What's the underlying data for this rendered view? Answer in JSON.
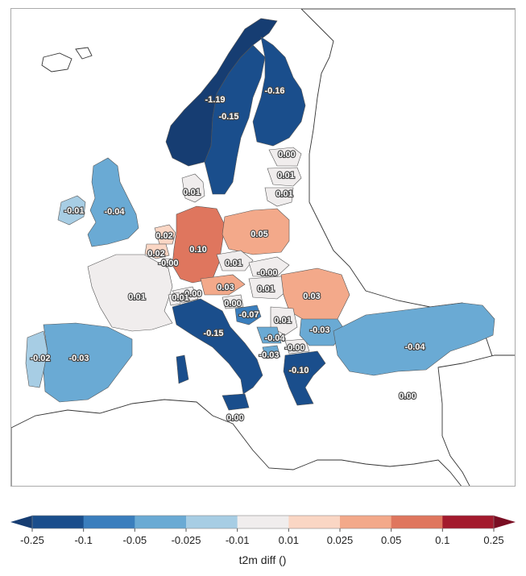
{
  "map": {
    "countries": [
      {
        "id": "norway",
        "label": "-1.19",
        "value": -1.19
      },
      {
        "id": "sweden",
        "label": "-0.15",
        "value": -0.15
      },
      {
        "id": "finland",
        "label": "-0.16",
        "value": -0.16
      },
      {
        "id": "estonia",
        "label": "0.00",
        "value": 0.0
      },
      {
        "id": "latvia",
        "label": "0.01",
        "value": 0.01
      },
      {
        "id": "lithuania",
        "label": "0.01",
        "value": 0.01
      },
      {
        "id": "denmark",
        "label": "0.01",
        "value": 0.01
      },
      {
        "id": "ireland",
        "label": "-0.01",
        "value": -0.01
      },
      {
        "id": "united-kingdom",
        "label": "-0.04",
        "value": -0.04
      },
      {
        "id": "netherlands",
        "label": "0.02",
        "value": 0.02
      },
      {
        "id": "belgium",
        "label": "0.02",
        "value": 0.02
      },
      {
        "id": "luxembourg",
        "label": "-0.00",
        "value": -0.0
      },
      {
        "id": "germany",
        "label": "0.10",
        "value": 0.1
      },
      {
        "id": "poland",
        "label": "0.05",
        "value": 0.05
      },
      {
        "id": "czechia",
        "label": "0.01",
        "value": 0.01
      },
      {
        "id": "slovakia",
        "label": "-0.00",
        "value": -0.0
      },
      {
        "id": "france",
        "label": "0.01",
        "value": 0.01
      },
      {
        "id": "switzerland",
        "label": "-0.00",
        "value": -0.0
      },
      {
        "id": "liechtenstein",
        "label": "0.01",
        "value": 0.01
      },
      {
        "id": "austria",
        "label": "0.03",
        "value": 0.03
      },
      {
        "id": "hungary",
        "label": "0.01",
        "value": 0.01
      },
      {
        "id": "romania",
        "label": "0.03",
        "value": 0.03
      },
      {
        "id": "slovenia",
        "label": "0.00",
        "value": 0.0
      },
      {
        "id": "croatia",
        "label": "-0.07",
        "value": -0.07
      },
      {
        "id": "serbia",
        "label": "0.01",
        "value": 0.01
      },
      {
        "id": "bosnia",
        "label": "-0.04",
        "value": -0.04
      },
      {
        "id": "montenegro",
        "label": "-0.03",
        "value": -0.03
      },
      {
        "id": "north-macedonia",
        "label": "-0.00",
        "value": -0.0
      },
      {
        "id": "bulgaria",
        "label": "-0.03",
        "value": -0.03
      },
      {
        "id": "italy",
        "label": "-0.15",
        "value": -0.15
      },
      {
        "id": "greece",
        "label": "-0.10",
        "value": -0.1
      },
      {
        "id": "turkey",
        "label": "-0.04",
        "value": -0.04
      },
      {
        "id": "cyprus",
        "label": "0.00",
        "value": 0.0
      },
      {
        "id": "malta",
        "label": "0.00",
        "value": 0.0
      },
      {
        "id": "portugal",
        "label": "-0.02",
        "value": -0.02
      },
      {
        "id": "spain",
        "label": "-0.03",
        "value": -0.03
      }
    ]
  },
  "colorbar": {
    "title": "t2m diff ()",
    "ticks": [
      "-0.25",
      "-0.1",
      "-0.05",
      "-0.025",
      "-0.01",
      "0.01",
      "0.025",
      "0.05",
      "0.1",
      "0.25"
    ],
    "colors": [
      "#1a4e8c",
      "#3a7ebd",
      "#6aaad4",
      "#a7cde4",
      "#f0eded",
      "#fad6c4",
      "#f3a98a",
      "#df765e",
      "#a31a2d"
    ],
    "under_color": "#163d72",
    "over_color": "#7a0e23"
  }
}
